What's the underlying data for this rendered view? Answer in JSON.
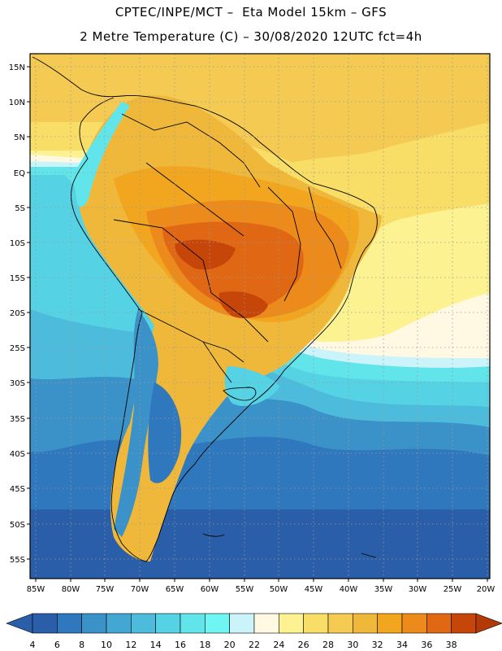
{
  "header": {
    "line1": "CPTEC/INPE/MCT –  Eta Model 15km – GFS",
    "line2": "2 Metre Temperature (C) – 30/08/2020 12UTC fct=4h"
  },
  "map": {
    "lat_labels": [
      "15N",
      "10N",
      "5N",
      "EQ",
      "5S",
      "10S",
      "15S",
      "20S",
      "25S",
      "30S",
      "35S",
      "40S",
      "45S",
      "50S",
      "55S"
    ],
    "lon_labels": [
      "85W",
      "80W",
      "75W",
      "70W",
      "65W",
      "60W",
      "55W",
      "50W",
      "45W",
      "40W",
      "35W",
      "30W",
      "25W",
      "20W"
    ]
  },
  "colorbar": {
    "labels": [
      "4",
      "6",
      "8",
      "10",
      "12",
      "14",
      "16",
      "18",
      "20",
      "22",
      "24",
      "26",
      "28",
      "30",
      "32",
      "34",
      "36",
      "38"
    ],
    "colors": [
      "#2a5ea8",
      "#2f78bd",
      "#3a92c9",
      "#44a7d3",
      "#4dbcdc",
      "#55d2e3",
      "#61e5ea",
      "#6ff6f2",
      "#cbf4fa",
      "#fff8e2",
      "#fdf291",
      "#f8dd66",
      "#f4ca52",
      "#efb83a",
      "#f2a51f",
      "#ec8a1b",
      "#e06713",
      "#c6460a"
    ],
    "under_color": "#2a5ea8",
    "over_color": "#b33a06"
  }
}
